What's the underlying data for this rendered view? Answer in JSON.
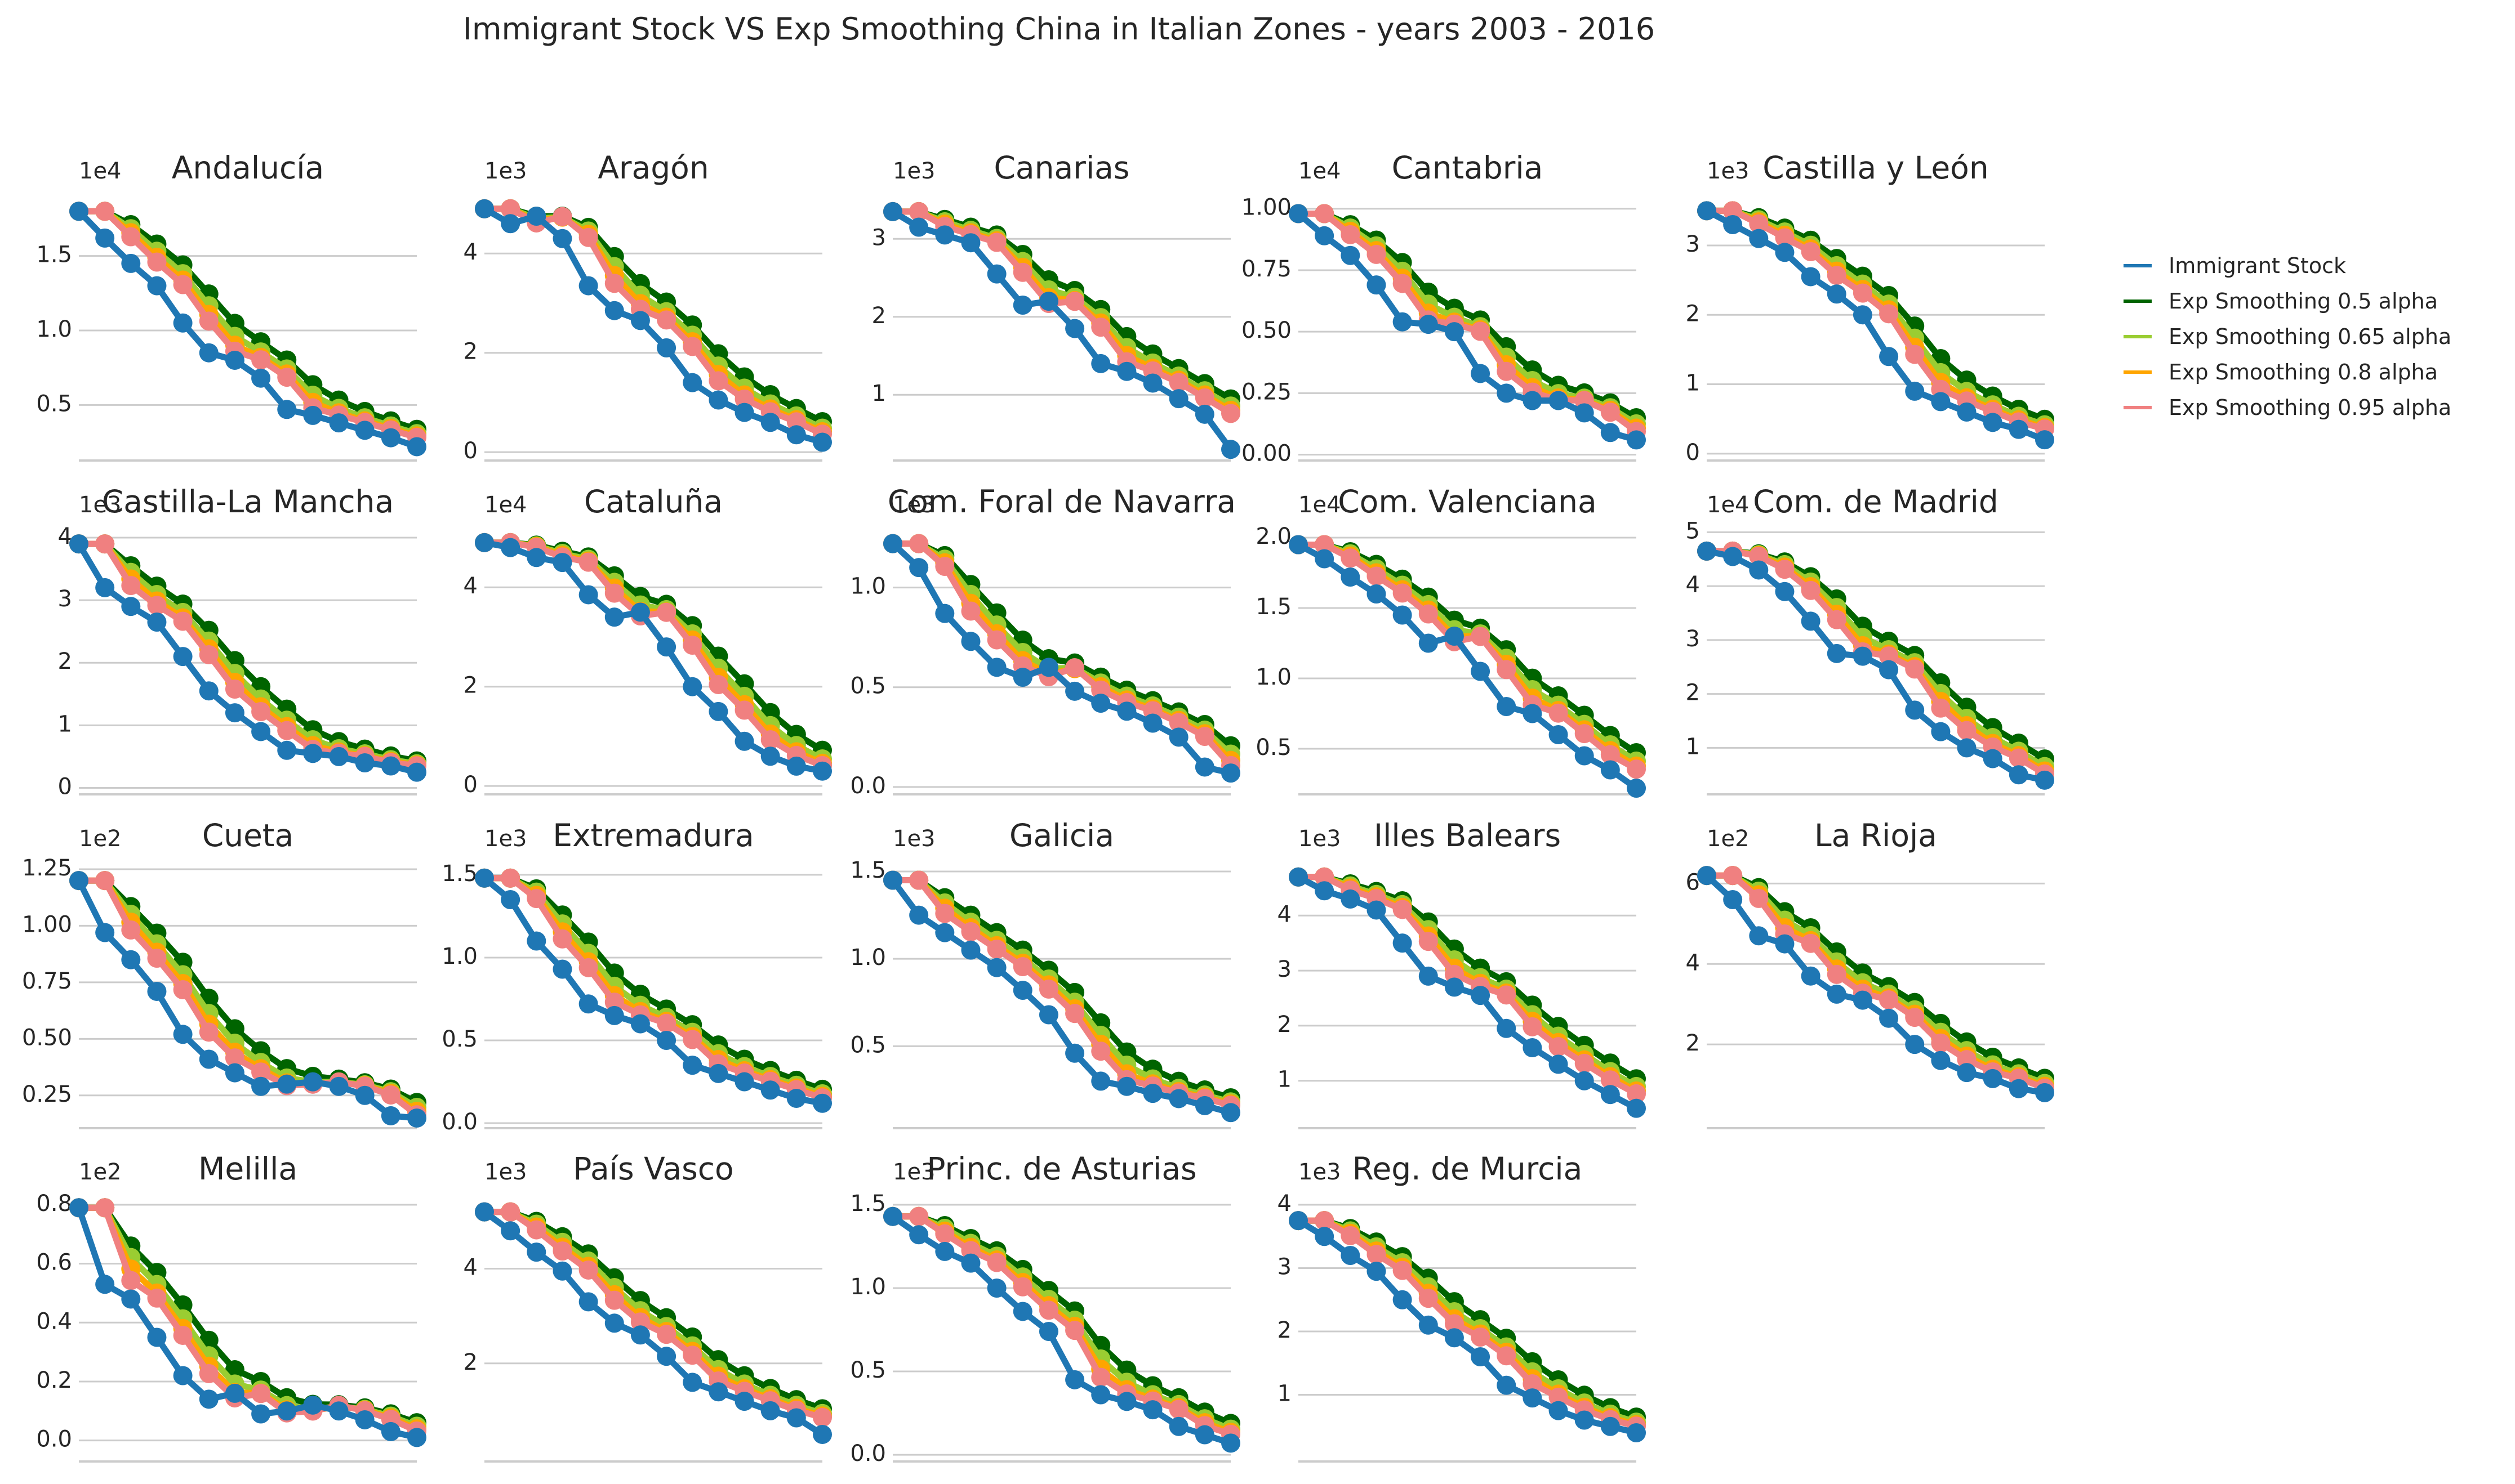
{
  "title": "Immigrant Stock VS Exp Smoothing China in Italian Zones - years 2003 - 2016",
  "legend": [
    {
      "label": "Immigrant Stock",
      "color": "#1f77b4"
    },
    {
      "label": "Exp Smoothing 0.5 alpha",
      "color": "#006400"
    },
    {
      "label": "Exp Smoothing 0.65 alpha",
      "color": "#9acd32"
    },
    {
      "label": "Exp Smoothing 0.8 alpha",
      "color": "#ffa500"
    },
    {
      "label": "Exp Smoothing 0.95 alpha",
      "color": "#f08080"
    }
  ],
  "chart_data": [
    {
      "type": "line",
      "title": "Andalucía",
      "offset": "1e4",
      "ylim": [
        0.15,
        1.85
      ],
      "ticks": [
        0.5,
        1.0,
        1.5
      ],
      "tick_labels": [
        "0.5",
        "1.0",
        "1.5"
      ],
      "x": [
        2003,
        2004,
        2005,
        2006,
        2007,
        2008,
        2009,
        2010,
        2011,
        2012,
        2013,
        2014,
        2015,
        2016
      ],
      "values": [
        1.8,
        1.62,
        1.45,
        1.3,
        1.05,
        0.85,
        0.8,
        0.68,
        0.47,
        0.43,
        0.38,
        0.33,
        0.28,
        0.22
      ]
    },
    {
      "type": "line",
      "title": "Aragón",
      "offset": "1e3",
      "ylim": [
        -0.1,
        5.0
      ],
      "ticks": [
        0,
        2,
        4
      ],
      "tick_labels": [
        "0",
        "2",
        "4"
      ],
      "x": [
        2003,
        2004,
        2005,
        2006,
        2007,
        2008,
        2009,
        2010,
        2011,
        2012,
        2013,
        2014,
        2015,
        2016
      ],
      "values": [
        4.9,
        4.6,
        4.75,
        4.3,
        3.35,
        2.85,
        2.65,
        2.1,
        1.4,
        1.05,
        0.8,
        0.6,
        0.35,
        0.2
      ]
    },
    {
      "type": "line",
      "title": "Canarias",
      "offset": "1e3",
      "ylim": [
        0.2,
        3.45
      ],
      "ticks": [
        1,
        2,
        3
      ],
      "tick_labels": [
        "1",
        "2",
        "3"
      ],
      "x": [
        2003,
        2004,
        2005,
        2006,
        2007,
        2008,
        2009,
        2010,
        2011,
        2012,
        2013,
        2014,
        2015,
        2016
      ],
      "values": [
        3.35,
        3.15,
        3.05,
        2.95,
        2.55,
        2.15,
        2.2,
        1.85,
        1.4,
        1.3,
        1.15,
        0.95,
        0.75,
        0.3
      ]
    },
    {
      "type": "line",
      "title": "Cantabria",
      "offset": "1e4",
      "ylim": [
        -0.01,
        1.02
      ],
      "ticks": [
        0.0,
        0.25,
        0.5,
        0.75,
        1.0
      ],
      "tick_labels": [
        "0.00",
        "0.25",
        "0.50",
        "0.75",
        "1.00"
      ],
      "x": [
        2003,
        2004,
        2005,
        2006,
        2007,
        2008,
        2009,
        2010,
        2011,
        2012,
        2013,
        2014,
        2015,
        2016
      ],
      "values": [
        0.98,
        0.89,
        0.81,
        0.69,
        0.54,
        0.53,
        0.5,
        0.33,
        0.25,
        0.22,
        0.22,
        0.17,
        0.09,
        0.06
      ]
    },
    {
      "type": "line",
      "title": "Castilla y León",
      "offset": "1e3",
      "ylim": [
        -0.05,
        3.6
      ],
      "ticks": [
        0,
        1,
        2,
        3
      ],
      "tick_labels": [
        "0",
        "1",
        "2",
        "3"
      ],
      "x": [
        2003,
        2004,
        2005,
        2006,
        2007,
        2008,
        2009,
        2010,
        2011,
        2012,
        2013,
        2014,
        2015,
        2016
      ],
      "values": [
        3.5,
        3.3,
        3.1,
        2.9,
        2.55,
        2.3,
        2.0,
        1.4,
        0.9,
        0.75,
        0.6,
        0.45,
        0.35,
        0.2
      ]
    },
    {
      "type": "line",
      "title": "Castilla-La Mancha",
      "offset": "1e3",
      "ylim": [
        -0.05,
        4.0
      ],
      "ticks": [
        0,
        1,
        2,
        3,
        4
      ],
      "tick_labels": [
        "0",
        "1",
        "2",
        "3",
        "4"
      ],
      "x": [
        2003,
        2004,
        2005,
        2006,
        2007,
        2008,
        2009,
        2010,
        2011,
        2012,
        2013,
        2014,
        2015,
        2016
      ],
      "values": [
        3.9,
        3.2,
        2.9,
        2.65,
        2.1,
        1.55,
        1.2,
        0.9,
        0.6,
        0.55,
        0.5,
        0.4,
        0.35,
        0.25
      ]
    },
    {
      "type": "line",
      "title": "Cataluña",
      "offset": "1e4",
      "ylim": [
        -0.1,
        5.0
      ],
      "ticks": [
        0,
        2,
        4
      ],
      "tick_labels": [
        "0",
        "2",
        "4"
      ],
      "x": [
        2003,
        2004,
        2005,
        2006,
        2007,
        2008,
        2009,
        2010,
        2011,
        2012,
        2013,
        2014,
        2015,
        2016
      ],
      "values": [
        4.9,
        4.8,
        4.6,
        4.5,
        3.85,
        3.4,
        3.5,
        2.8,
        2.0,
        1.5,
        0.9,
        0.6,
        0.4,
        0.3
      ]
    },
    {
      "type": "line",
      "title": "Com. Foral de Navarra",
      "offset": "1e3",
      "ylim": [
        -0.02,
        1.25
      ],
      "ticks": [
        0.0,
        0.5,
        1.0
      ],
      "tick_labels": [
        "0.0",
        "0.5",
        "1.0"
      ],
      "x": [
        2003,
        2004,
        2005,
        2006,
        2007,
        2008,
        2009,
        2010,
        2011,
        2012,
        2013,
        2014,
        2015,
        2016
      ],
      "values": [
        1.22,
        1.1,
        0.87,
        0.73,
        0.6,
        0.55,
        0.6,
        0.48,
        0.42,
        0.38,
        0.32,
        0.25,
        0.1,
        0.07
      ]
    },
    {
      "type": "line",
      "title": "Com. Valenciana",
      "offset": "1e4",
      "ylim": [
        0.2,
        2.0
      ],
      "ticks": [
        0.5,
        1.0,
        1.5,
        2.0
      ],
      "tick_labels": [
        "0.5",
        "1.0",
        "1.5",
        "2.0"
      ],
      "x": [
        2003,
        2004,
        2005,
        2006,
        2007,
        2008,
        2009,
        2010,
        2011,
        2012,
        2013,
        2014,
        2015,
        2016
      ],
      "values": [
        1.95,
        1.85,
        1.72,
        1.6,
        1.45,
        1.25,
        1.3,
        1.05,
        0.8,
        0.75,
        0.6,
        0.45,
        0.35,
        0.22
      ]
    },
    {
      "type": "line",
      "title": "Com. de Madrid",
      "offset": "1e4",
      "ylim": [
        0.2,
        4.9
      ],
      "ticks": [
        1,
        2,
        3,
        4,
        5
      ],
      "tick_labels": [
        "1",
        "2",
        "3",
        "4",
        "5"
      ],
      "x": [
        2003,
        2004,
        2005,
        2006,
        2007,
        2008,
        2009,
        2010,
        2011,
        2012,
        2013,
        2014,
        2015,
        2016
      ],
      "values": [
        4.65,
        4.55,
        4.3,
        3.9,
        3.35,
        2.75,
        2.7,
        2.45,
        1.7,
        1.3,
        1.0,
        0.8,
        0.5,
        0.4
      ]
    },
    {
      "type": "line",
      "title": "Cueta",
      "offset": "1e2",
      "ylim": [
        0.12,
        1.24
      ],
      "ticks": [
        0.25,
        0.5,
        0.75,
        1.0,
        1.25
      ],
      "tick_labels": [
        "0.25",
        "0.50",
        "0.75",
        "1.00",
        "1.25"
      ],
      "x": [
        2003,
        2004,
        2005,
        2006,
        2007,
        2008,
        2009,
        2010,
        2011,
        2012,
        2013,
        2014,
        2015,
        2016
      ],
      "values": [
        1.2,
        0.97,
        0.85,
        0.71,
        0.52,
        0.41,
        0.35,
        0.29,
        0.3,
        0.31,
        0.29,
        0.25,
        0.16,
        0.15
      ]
    },
    {
      "type": "line",
      "title": "Extremadura",
      "offset": "1e3",
      "ylim": [
        -0.01,
        1.52
      ],
      "ticks": [
        0.0,
        0.5,
        1.0,
        1.5
      ],
      "tick_labels": [
        "0.0",
        "0.5",
        "1.0",
        "1.5"
      ],
      "x": [
        2003,
        2004,
        2005,
        2006,
        2007,
        2008,
        2009,
        2010,
        2011,
        2012,
        2013,
        2014,
        2015,
        2016
      ],
      "values": [
        1.48,
        1.35,
        1.1,
        0.93,
        0.72,
        0.65,
        0.6,
        0.5,
        0.35,
        0.3,
        0.25,
        0.2,
        0.15,
        0.12
      ]
    },
    {
      "type": "line",
      "title": "Galicia",
      "offset": "1e3",
      "ylim": [
        0.05,
        1.5
      ],
      "ticks": [
        0.5,
        1.0,
        1.5
      ],
      "tick_labels": [
        "0.5",
        "1.0",
        "1.5"
      ],
      "x": [
        2003,
        2004,
        2005,
        2006,
        2007,
        2008,
        2009,
        2010,
        2011,
        2012,
        2013,
        2014,
        2015,
        2016
      ],
      "values": [
        1.45,
        1.25,
        1.15,
        1.05,
        0.95,
        0.82,
        0.68,
        0.46,
        0.3,
        0.27,
        0.23,
        0.2,
        0.16,
        0.12
      ]
    },
    {
      "type": "line",
      "title": "Illes Balears",
      "offset": "1e3",
      "ylim": [
        0.2,
        4.8
      ],
      "ticks": [
        1,
        2,
        3,
        4
      ],
      "tick_labels": [
        "1",
        "2",
        "3",
        "4"
      ],
      "x": [
        2003,
        2004,
        2005,
        2006,
        2007,
        2008,
        2009,
        2010,
        2011,
        2012,
        2013,
        2014,
        2015,
        2016
      ],
      "values": [
        4.7,
        4.45,
        4.3,
        4.1,
        3.5,
        2.9,
        2.7,
        2.55,
        1.95,
        1.6,
        1.3,
        1.0,
        0.75,
        0.5
      ]
    },
    {
      "type": "line",
      "title": "La Rioja",
      "offset": "1e2",
      "ylim": [
        0.0,
        6.3
      ],
      "ticks": [
        2,
        4,
        6
      ],
      "tick_labels": [
        "2",
        "4",
        "6"
      ],
      "x": [
        2003,
        2004,
        2005,
        2006,
        2007,
        2008,
        2009,
        2010,
        2011,
        2012,
        2013,
        2014,
        2015,
        2016
      ],
      "values": [
        6.2,
        5.6,
        4.7,
        4.5,
        3.7,
        3.25,
        3.1,
        2.65,
        2.0,
        1.6,
        1.3,
        1.15,
        0.9,
        0.8
      ]
    },
    {
      "type": "line",
      "title": "Melilla",
      "offset": "1e2",
      "ylim": [
        -0.06,
        0.8
      ],
      "ticks": [
        0.0,
        0.2,
        0.4,
        0.6,
        0.8
      ],
      "tick_labels": [
        "0.0",
        "0.2",
        "0.4",
        "0.6",
        "0.8"
      ],
      "x": [
        2003,
        2004,
        2005,
        2006,
        2007,
        2008,
        2009,
        2010,
        2011,
        2012,
        2013,
        2014,
        2015,
        2016
      ],
      "values": [
        0.79,
        0.53,
        0.48,
        0.35,
        0.22,
        0.14,
        0.16,
        0.09,
        0.1,
        0.12,
        0.1,
        0.07,
        0.03,
        0.01
      ]
    },
    {
      "type": "line",
      "title": "País Vasco",
      "offset": "1e3",
      "ylim": [
        0.0,
        5.35
      ],
      "ticks": [
        2,
        4
      ],
      "tick_labels": [
        "2",
        "4"
      ],
      "x": [
        2003,
        2004,
        2005,
        2006,
        2007,
        2008,
        2009,
        2010,
        2011,
        2012,
        2013,
        2014,
        2015,
        2016
      ],
      "values": [
        5.2,
        4.8,
        4.35,
        3.95,
        3.3,
        2.85,
        2.6,
        2.15,
        1.6,
        1.4,
        1.2,
        1.0,
        0.85,
        0.5
      ]
    },
    {
      "type": "line",
      "title": "Princ. de Asturias",
      "offset": "1e3",
      "ylim": [
        -0.02,
        1.5
      ],
      "ticks": [
        0.0,
        0.5,
        1.0,
        1.5
      ],
      "tick_labels": [
        "0.0",
        "0.5",
        "1.0",
        "1.5"
      ],
      "x": [
        2003,
        2004,
        2005,
        2006,
        2007,
        2008,
        2009,
        2010,
        2011,
        2012,
        2013,
        2014,
        2015,
        2016
      ],
      "values": [
        1.43,
        1.32,
        1.22,
        1.15,
        1.0,
        0.86,
        0.74,
        0.45,
        0.36,
        0.32,
        0.27,
        0.17,
        0.12,
        0.07
      ]
    },
    {
      "type": "line",
      "title": "Reg. de Murcia",
      "offset": "1e3",
      "ylim": [
        0.0,
        4.0
      ],
      "ticks": [
        1,
        2,
        3,
        4
      ],
      "tick_labels": [
        "1",
        "2",
        "3",
        "4"
      ],
      "x": [
        2003,
        2004,
        2005,
        2006,
        2007,
        2008,
        2009,
        2010,
        2011,
        2012,
        2013,
        2014,
        2015,
        2016
      ],
      "values": [
        3.75,
        3.5,
        3.2,
        2.95,
        2.5,
        2.1,
        1.9,
        1.6,
        1.15,
        0.95,
        0.75,
        0.6,
        0.5,
        0.4
      ]
    }
  ]
}
